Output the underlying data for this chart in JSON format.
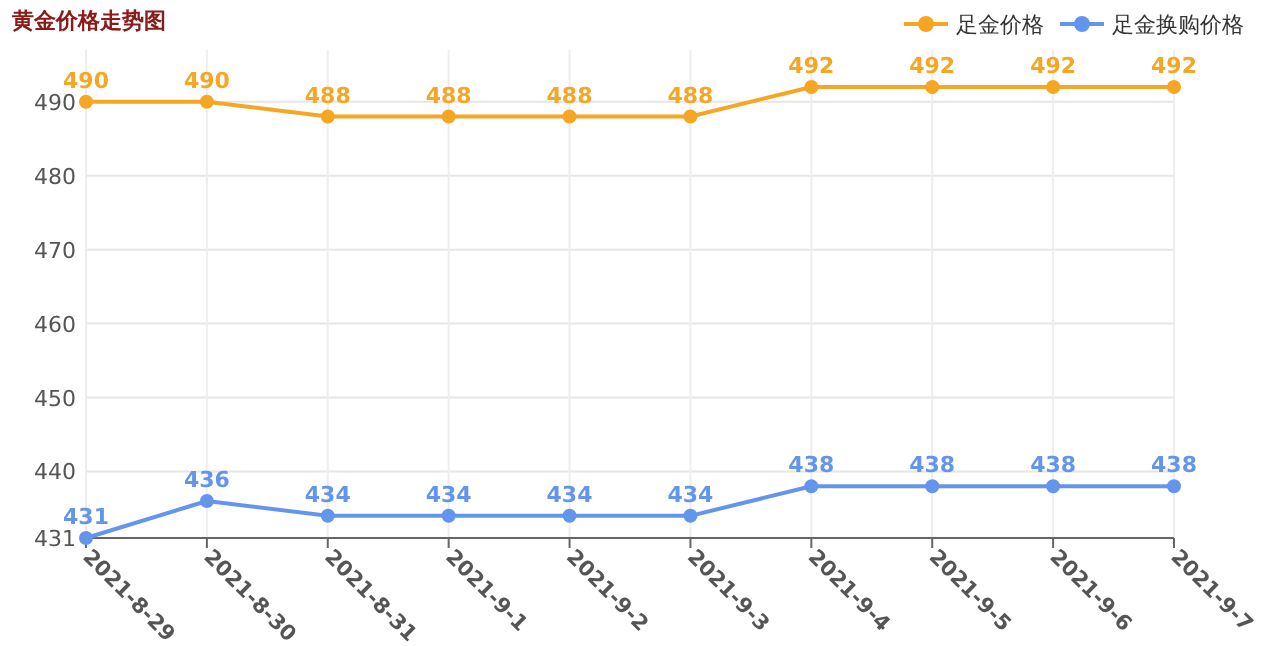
{
  "chart_data": {
    "type": "line",
    "title": "黄金价格走势图",
    "categories": [
      "2021-8-29",
      "2021-8-30",
      "2021-8-31",
      "2021-9-1",
      "2021-9-2",
      "2021-9-3",
      "2021-9-4",
      "2021-9-5",
      "2021-9-6",
      "2021-9-7"
    ],
    "series": [
      {
        "name": "足金价格",
        "color": "#f5a623",
        "values": [
          490,
          490,
          488,
          488,
          488,
          488,
          492,
          492,
          492,
          492
        ]
      },
      {
        "name": "足金换购价格",
        "color": "#6495ed",
        "values": [
          431,
          436,
          434,
          434,
          434,
          434,
          438,
          438,
          438,
          438
        ]
      }
    ],
    "ylim": [
      431,
      497
    ],
    "yticks": [
      431,
      440,
      450,
      460,
      470,
      480,
      490
    ],
    "grid": true,
    "legend": "top right",
    "marker": "circle",
    "line_style": "solid",
    "data_labels": true
  }
}
